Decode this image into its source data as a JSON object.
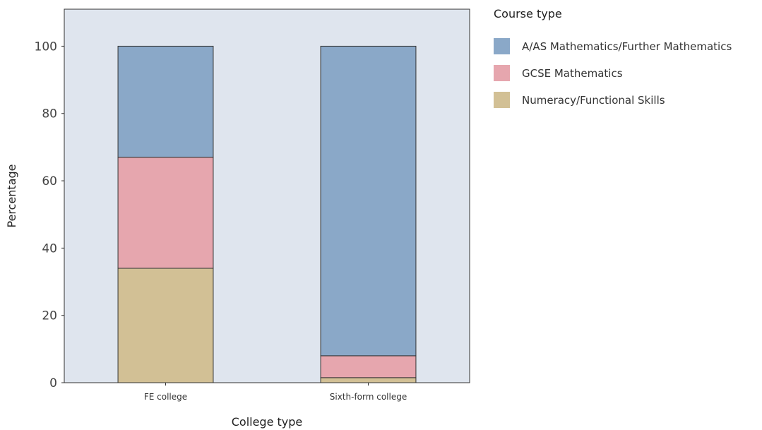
{
  "chart_data": {
    "type": "bar",
    "stacked": true,
    "categories": [
      "FE college",
      "Sixth-form college"
    ],
    "series": [
      {
        "name": "Numeracy/Functional Skills",
        "values": [
          34,
          1.5
        ],
        "color": "#d2c095"
      },
      {
        "name": "GCSE Mathematics",
        "values": [
          33,
          6.5
        ],
        "color": "#e6a6ae"
      },
      {
        "name": "A/AS Mathematics/Further Mathematics",
        "values": [
          33,
          92
        ],
        "color": "#8aa8c8"
      }
    ],
    "legend_order": [
      "A/AS Mathematics/Further Mathematics",
      "GCSE Mathematics",
      "Numeracy/Functional Skills"
    ],
    "xlabel": "College type",
    "ylabel": "Percentage",
    "legend_title": "Course type",
    "ylim": [
      0,
      111
    ],
    "yticks": [
      0,
      20,
      40,
      60,
      80,
      100
    ],
    "grid": false,
    "legend_position": "right",
    "panel_background": "#dfe5ee"
  }
}
